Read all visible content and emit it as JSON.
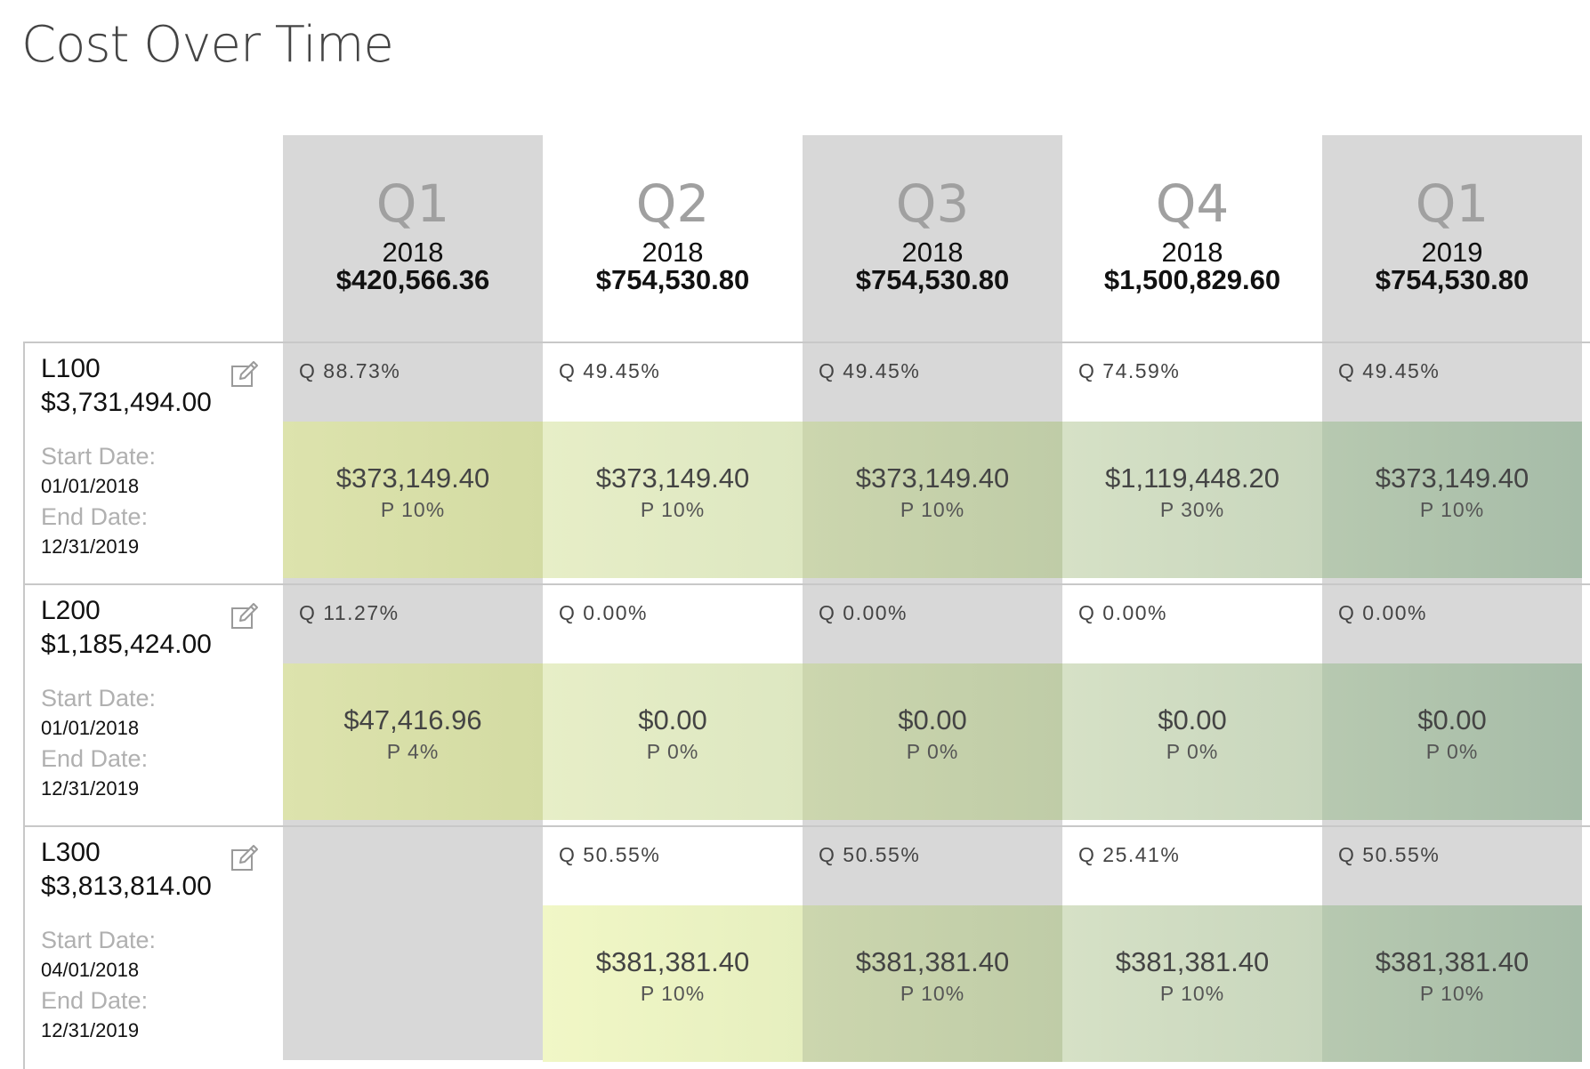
{
  "page": {
    "title": "Cost Over Time"
  },
  "columns": [
    {
      "quarter": "Q1",
      "year": "2018",
      "total": "$420,566.36",
      "shaded": true
    },
    {
      "quarter": "Q2",
      "year": "2018",
      "total": "$754,530.80",
      "shaded": false
    },
    {
      "quarter": "Q3",
      "year": "2018",
      "total": "$754,530.80",
      "shaded": true
    },
    {
      "quarter": "Q4",
      "year": "2018",
      "total": "$1,500,829.60",
      "shaded": false
    },
    {
      "quarter": "Q1",
      "year": "2019",
      "total": "$754,530.80",
      "shaded": true
    }
  ],
  "rows": [
    {
      "code": "L100",
      "amount": "$3,731,494.00",
      "start_label": "Start Date:",
      "start_date": "01/01/2018",
      "end_label": "End Date:",
      "end_date": "12/31/2019",
      "cells": [
        {
          "q": "Q 88.73%",
          "value": "$373,149.40",
          "p": "P 10%"
        },
        {
          "q": "Q 49.45%",
          "value": "$373,149.40",
          "p": "P 10%"
        },
        {
          "q": "Q 49.45%",
          "value": "$373,149.40",
          "p": "P 10%"
        },
        {
          "q": "Q 74.59%",
          "value": "$1,119,448.20",
          "p": "P 30%"
        },
        {
          "q": "Q 49.45%",
          "value": "$373,149.40",
          "p": "P 10%"
        }
      ]
    },
    {
      "code": "L200",
      "amount": "$1,185,424.00",
      "start_label": "Start Date:",
      "start_date": "01/01/2018",
      "end_label": "End Date:",
      "end_date": "12/31/2019",
      "cells": [
        {
          "q": "Q 11.27%",
          "value": "$47,416.96",
          "p": "P 4%"
        },
        {
          "q": "Q 0.00%",
          "value": "$0.00",
          "p": "P 0%"
        },
        {
          "q": "Q 0.00%",
          "value": "$0.00",
          "p": "P 0%"
        },
        {
          "q": "Q 0.00%",
          "value": "$0.00",
          "p": "P 0%"
        },
        {
          "q": "Q 0.00%",
          "value": "$0.00",
          "p": "P 0%"
        }
      ]
    },
    {
      "code": "L300",
      "amount": "$3,813,814.00",
      "start_label": "Start Date:",
      "start_date": "04/01/2018",
      "end_label": "End Date:",
      "end_date": "12/31/2019",
      "cells": [
        null,
        {
          "q": "Q 50.55%",
          "value": "$381,381.40",
          "p": "P 10%"
        },
        {
          "q": "Q 50.55%",
          "value": "$381,381.40",
          "p": "P 10%"
        },
        {
          "q": "Q 25.41%",
          "value": "$381,381.40",
          "p": "P 10%"
        },
        {
          "q": "Q 50.55%",
          "value": "$381,381.40",
          "p": "P 10%"
        }
      ]
    }
  ],
  "icons": {
    "edit": "edit-icon"
  },
  "colors": {
    "column_shade": "#d8d8d8",
    "label_gray": "#b0b0b0",
    "quarter_gray": "#a0a0a0"
  }
}
